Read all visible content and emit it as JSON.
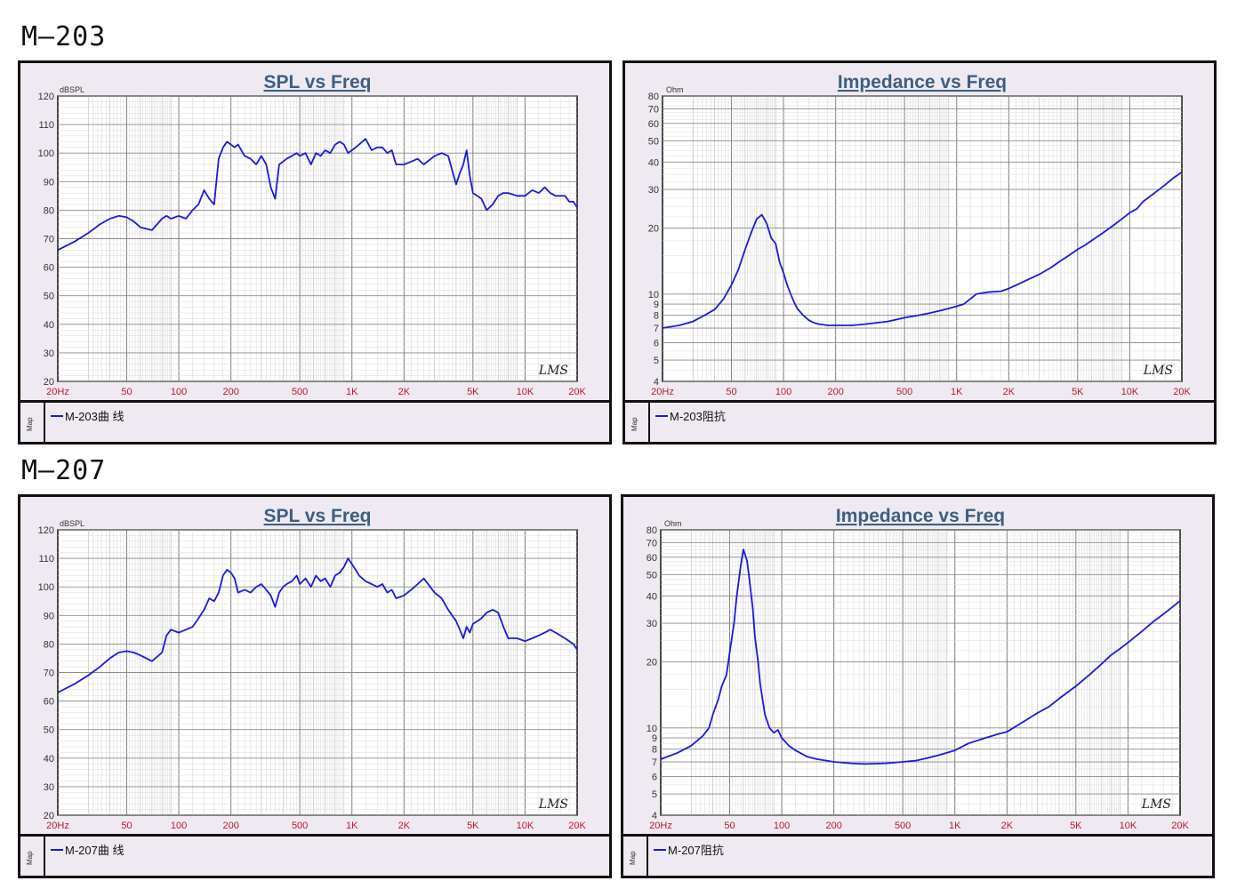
{
  "colors": {
    "curve": "#1a1adb",
    "tick_label_y": "#333333",
    "tick_label_x": "#c0162e",
    "title": "#3d5f80",
    "grid": "#9a9a9a",
    "plot_bg": "#ffffff",
    "panel_bg": "#efeaf1"
  },
  "sections": [
    {
      "label": "M—203"
    },
    {
      "label": "M—207"
    }
  ],
  "legend_map_label": "Map",
  "watermark": "LMS",
  "chart_data": [
    {
      "type": "line",
      "title": "SPL vs Freq",
      "ylabel": "dBSPL",
      "xscale": "log",
      "xlim": [
        20,
        20000
      ],
      "ylim": [
        20,
        120
      ],
      "yticks": [
        20,
        30,
        40,
        50,
        60,
        70,
        80,
        90,
        100,
        110,
        120
      ],
      "xtick_labels": [
        "20Hz",
        "50",
        "100",
        "200",
        "500",
        "1K",
        "2K",
        "5K",
        "10K",
        "20K"
      ],
      "xtick_values": [
        20,
        50,
        100,
        200,
        500,
        1000,
        2000,
        5000,
        10000,
        20000
      ],
      "grid": true,
      "series": [
        {
          "name": "M-203曲 线",
          "x": [
            20,
            25,
            30,
            35,
            40,
            45,
            50,
            55,
            60,
            70,
            80,
            85,
            90,
            100,
            110,
            120,
            130,
            140,
            150,
            160,
            170,
            180,
            190,
            200,
            210,
            220,
            240,
            260,
            280,
            300,
            320,
            340,
            360,
            380,
            400,
            420,
            450,
            480,
            500,
            540,
            580,
            620,
            660,
            700,
            750,
            800,
            850,
            900,
            950,
            1000,
            1050,
            1100,
            1200,
            1300,
            1400,
            1500,
            1600,
            1700,
            1800,
            2000,
            2200,
            2400,
            2600,
            3000,
            3300,
            3600,
            4000,
            4200,
            4400,
            4600,
            4800,
            5000,
            5300,
            5600,
            6000,
            6500,
            7000,
            7500,
            8000,
            9000,
            10000,
            11000,
            12000,
            13000,
            14000,
            15000,
            16000,
            17000,
            18000,
            19000,
            20000
          ],
          "y": [
            66,
            69,
            72,
            75,
            77,
            78,
            77.5,
            76,
            74,
            73,
            77,
            78,
            77,
            78,
            77,
            80,
            82,
            87,
            84,
            82,
            98,
            102,
            104,
            103,
            102,
            103,
            99,
            98,
            96,
            99,
            96,
            88,
            84,
            96,
            97,
            98,
            99,
            100,
            99,
            100,
            96,
            100,
            99,
            101,
            100,
            103,
            104,
            103,
            100,
            101,
            102,
            103,
            105,
            101,
            102,
            102,
            100,
            101,
            96,
            96,
            97,
            98,
            96,
            99,
            100,
            99,
            89,
            93,
            96,
            101,
            92,
            86,
            85,
            84,
            80,
            82,
            85,
            86,
            86,
            85,
            85,
            87,
            86,
            88,
            86,
            85,
            85,
            85,
            83,
            83,
            81
          ]
        }
      ]
    },
    {
      "type": "line",
      "title": "Impedance vs Freq",
      "ylabel": "Ohm",
      "xscale": "log",
      "yscale": "log",
      "xlim": [
        20,
        20000
      ],
      "ylim": [
        4,
        80
      ],
      "yticks": [
        4,
        5,
        6,
        7,
        8,
        9,
        10,
        20,
        30,
        40,
        50,
        60,
        70,
        80
      ],
      "xtick_labels": [
        "20Hz",
        "50",
        "100",
        "200",
        "500",
        "1K",
        "2K",
        "5K",
        "10K",
        "20K"
      ],
      "xtick_values": [
        20,
        50,
        100,
        200,
        500,
        1000,
        2000,
        5000,
        10000,
        20000
      ],
      "grid": true,
      "series": [
        {
          "name": "M-203阻抗",
          "x": [
            20,
            25,
            30,
            35,
            40,
            45,
            50,
            55,
            60,
            65,
            70,
            75,
            80,
            85,
            90,
            95,
            100,
            105,
            110,
            115,
            120,
            130,
            140,
            150,
            160,
            180,
            200,
            250,
            300,
            400,
            500,
            600,
            700,
            800,
            900,
            1000,
            1100,
            1200,
            1300,
            1500,
            1800,
            2000,
            2500,
            3000,
            3500,
            4000,
            4500,
            5000,
            5500,
            6000,
            7000,
            8000,
            9000,
            10000,
            11000,
            12000,
            14000,
            16000,
            18000,
            20000
          ],
          "y": [
            7,
            7.2,
            7.5,
            8,
            8.5,
            9.5,
            11,
            13,
            16,
            19,
            22,
            23,
            21,
            18,
            17,
            14,
            12.5,
            11,
            10,
            9.2,
            8.6,
            8,
            7.6,
            7.4,
            7.3,
            7.2,
            7.2,
            7.2,
            7.3,
            7.5,
            7.8,
            8,
            8.2,
            8.4,
            8.6,
            8.8,
            9,
            9.5,
            10,
            10.2,
            10.3,
            10.6,
            11.5,
            12.3,
            13.2,
            14.2,
            15.1,
            16,
            16.7,
            17.5,
            19,
            20.5,
            22,
            23.5,
            24.5,
            26.5,
            29,
            31.5,
            34,
            36
          ]
        }
      ]
    },
    {
      "type": "line",
      "title": "SPL vs Freq",
      "ylabel": "dBSPL",
      "xscale": "log",
      "xlim": [
        20,
        20000
      ],
      "ylim": [
        20,
        120
      ],
      "yticks": [
        20,
        30,
        40,
        50,
        60,
        70,
        80,
        90,
        100,
        110,
        120
      ],
      "xtick_labels": [
        "20Hz",
        "50",
        "100",
        "200",
        "500",
        "1K",
        "2K",
        "5K",
        "10K",
        "20K"
      ],
      "xtick_values": [
        20,
        50,
        100,
        200,
        500,
        1000,
        2000,
        5000,
        10000,
        20000
      ],
      "grid": true,
      "series": [
        {
          "name": "M-207曲 线",
          "x": [
            20,
            25,
            30,
            35,
            40,
            45,
            50,
            55,
            60,
            70,
            80,
            85,
            90,
            100,
            110,
            120,
            130,
            140,
            150,
            160,
            170,
            180,
            190,
            200,
            210,
            220,
            240,
            260,
            280,
            300,
            320,
            340,
            360,
            380,
            400,
            420,
            450,
            480,
            500,
            540,
            580,
            620,
            660,
            700,
            750,
            800,
            850,
            900,
            950,
            1000,
            1050,
            1100,
            1200,
            1300,
            1400,
            1500,
            1600,
            1700,
            1800,
            2000,
            2200,
            2400,
            2600,
            3000,
            3300,
            3600,
            4000,
            4200,
            4400,
            4600,
            4800,
            5000,
            5300,
            5600,
            6000,
            6500,
            7000,
            7500,
            8000,
            9000,
            10000,
            11000,
            12000,
            13000,
            14000,
            15000,
            16000,
            17000,
            18000,
            19000,
            20000
          ],
          "y": [
            63,
            66,
            69,
            72,
            75,
            77,
            77.5,
            77,
            76,
            74,
            77,
            83,
            85,
            84,
            85,
            86,
            89,
            92,
            96,
            95,
            98,
            104,
            106,
            105,
            103,
            98,
            99,
            98,
            100,
            101,
            99,
            97,
            93,
            98,
            100,
            101,
            102,
            104,
            101,
            103,
            100,
            104,
            102,
            103,
            100,
            104,
            105,
            107,
            110,
            108,
            106,
            104,
            102,
            101,
            100,
            101,
            98,
            99,
            96,
            97,
            99,
            101,
            103,
            98,
            96,
            92,
            88,
            85,
            82,
            86,
            84,
            87,
            88,
            89,
            91,
            92,
            91,
            86,
            82,
            82,
            81,
            82,
            83,
            84,
            85,
            84,
            83,
            82,
            81,
            80,
            78
          ]
        }
      ]
    },
    {
      "type": "line",
      "title": "Impedance vs Freq",
      "ylabel": "Ohm",
      "xscale": "log",
      "yscale": "log",
      "xlim": [
        20,
        20000
      ],
      "ylim": [
        4,
        80
      ],
      "yticks": [
        4,
        5,
        6,
        7,
        8,
        9,
        10,
        20,
        30,
        40,
        50,
        60,
        70,
        80
      ],
      "xtick_labels": [
        "20Hz",
        "50",
        "100",
        "200",
        "500",
        "1K",
        "2K",
        "5K",
        "10K",
        "20K"
      ],
      "xtick_values": [
        20,
        50,
        100,
        200,
        500,
        1000,
        2000,
        5000,
        10000,
        20000
      ],
      "grid": true,
      "series": [
        {
          "name": "M-207阻抗",
          "x": [
            20,
            25,
            30,
            35,
            38,
            40,
            43,
            45,
            48,
            50,
            53,
            55,
            58,
            60,
            63,
            65,
            68,
            70,
            73,
            75,
            78,
            80,
            85,
            90,
            95,
            100,
            110,
            120,
            140,
            160,
            180,
            200,
            250,
            300,
            400,
            500,
            600,
            700,
            800,
            900,
            1000,
            1200,
            1500,
            1800,
            2000,
            2500,
            3000,
            3500,
            4000,
            5000,
            6000,
            7000,
            8000,
            9000,
            10000,
            12000,
            14000,
            16000,
            18000,
            20000
          ],
          "y": [
            7.2,
            7.7,
            8.3,
            9.2,
            10,
            11.5,
            13.5,
            15.5,
            17.5,
            22,
            30,
            40,
            55,
            65,
            58,
            48,
            35,
            26,
            20,
            16,
            13,
            11.5,
            10,
            9.5,
            9.8,
            9,
            8.3,
            7.9,
            7.4,
            7.2,
            7.1,
            7,
            6.9,
            6.85,
            6.9,
            7,
            7.1,
            7.3,
            7.5,
            7.7,
            7.9,
            8.5,
            9,
            9.4,
            9.6,
            10.7,
            11.7,
            12.5,
            13.6,
            15.5,
            17.5,
            19.5,
            21.5,
            23,
            24.5,
            27.5,
            30.5,
            33,
            35.5,
            38
          ]
        }
      ]
    }
  ]
}
